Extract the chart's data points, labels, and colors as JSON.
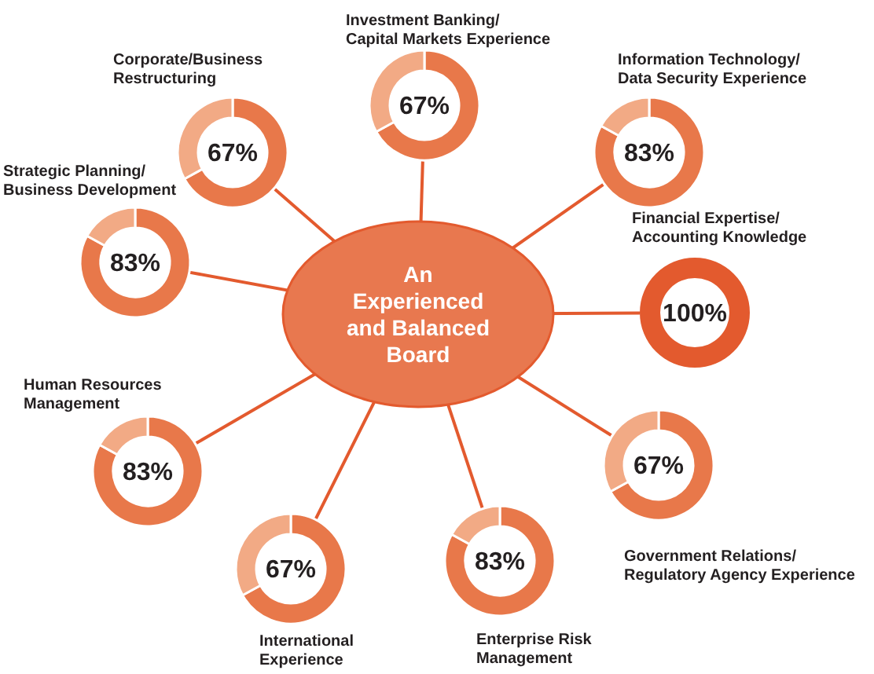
{
  "chart_data": [
    {
      "type": "other",
      "title": "An Experienced and Balanced Board"
    },
    {
      "type": "donut",
      "title": "Corporate/Business Restructuring",
      "categories": [
        null,
        null
      ],
      "values": [
        67,
        33
      ],
      "colors": [
        "#e8784a",
        "#f2aa85"
      ],
      "value_labels": [
        "67%",
        null
      ]
    },
    {
      "type": "donut",
      "title": "Investment Banking/ Capital Markets Experience",
      "categories": [
        null,
        null
      ],
      "values": [
        67,
        33
      ],
      "colors": [
        "#e8784a",
        "#f2aa85"
      ],
      "value_labels": [
        "67%",
        null
      ]
    },
    {
      "type": "donut",
      "title": "Information Technology/ Data Security Experience",
      "categories": [
        null,
        null
      ],
      "values": [
        83,
        17
      ],
      "colors": [
        "#e8784a",
        "#f2aa85"
      ],
      "value_labels": [
        "83%",
        null
      ]
    },
    {
      "type": "donut",
      "title": "Financial Expertise/ Accounting Knowledge",
      "categories": [
        null
      ],
      "values": [
        100
      ],
      "colors": [
        "#e35a2e"
      ],
      "value_labels": [
        "100%"
      ]
    },
    {
      "type": "donut",
      "title": "Government Relations/ Regulatory Agency Experience",
      "categories": [
        null,
        null
      ],
      "values": [
        67,
        33
      ],
      "colors": [
        "#e8784a",
        "#f2aa85"
      ],
      "value_labels": [
        "67%",
        null
      ]
    },
    {
      "type": "donut",
      "title": "Enterprise Risk Management",
      "categories": [
        null,
        null
      ],
      "values": [
        83,
        17
      ],
      "colors": [
        "#e8784a",
        "#f2aa85"
      ],
      "value_labels": [
        "83%",
        null
      ]
    },
    {
      "type": "donut",
      "title": "International Experience",
      "categories": [
        null,
        null
      ],
      "values": [
        67,
        33
      ],
      "colors": [
        "#e8784a",
        "#f2aa85"
      ],
      "value_labels": [
        "67%",
        null
      ]
    },
    {
      "type": "donut",
      "title": "Human Resources Management",
      "categories": [
        null,
        null
      ],
      "values": [
        83,
        17
      ],
      "colors": [
        "#e8784a",
        "#f2aa85"
      ],
      "value_labels": [
        "83%",
        null
      ]
    },
    {
      "type": "donut",
      "title": "Strategic Planning/ Business Development",
      "categories": [
        null,
        null
      ],
      "values": [
        83,
        17
      ],
      "colors": [
        "#e8784a",
        "#f2aa85"
      ],
      "value_labels": [
        "83%",
        null
      ]
    }
  ]
}
